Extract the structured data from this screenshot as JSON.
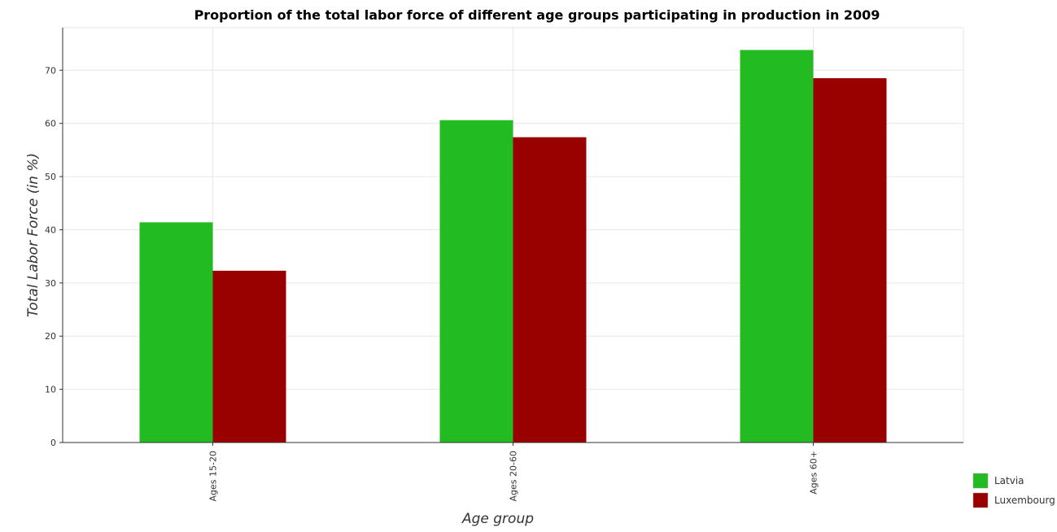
{
  "chart_data": {
    "type": "bar",
    "title": "Proportion of the total labor force of different age groups participating in production in 2009",
    "xlabel": "Age group",
    "ylabel": "Total Labor Force (in %)",
    "categories": [
      "Ages 15-20",
      "Ages 20-60",
      "Ages 60+"
    ],
    "series": [
      {
        "name": "Latvia",
        "color": "#22bb22",
        "values": [
          41.4,
          60.6,
          73.8
        ]
      },
      {
        "name": "Luxembourg",
        "color": "#990000",
        "values": [
          32.3,
          57.4,
          68.5
        ]
      }
    ],
    "ylim": [
      0,
      78
    ],
    "yticks": [
      0,
      10,
      20,
      30,
      40,
      50,
      60,
      70
    ],
    "grid": true,
    "legend_position": "bottom-right"
  }
}
